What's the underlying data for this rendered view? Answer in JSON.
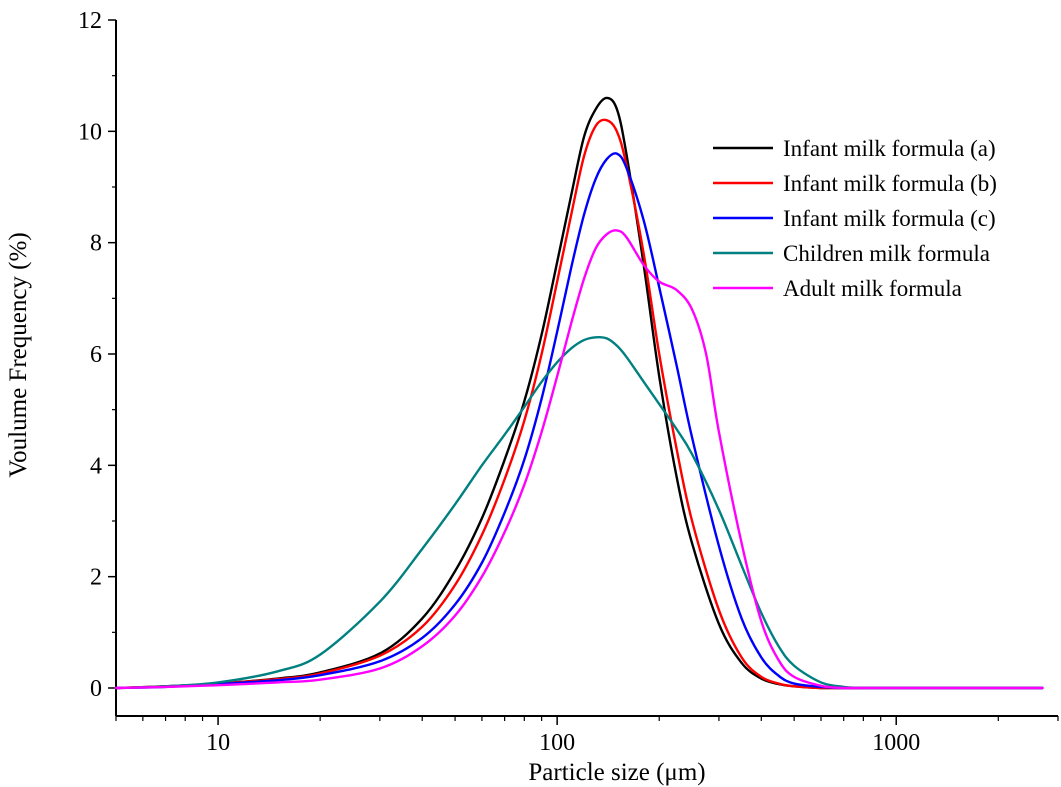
{
  "chart_data": {
    "type": "line",
    "title": "",
    "xlabel": "Particle size (μm)",
    "ylabel": "Voulume Frequency (%)",
    "x_scale": "log",
    "xlim": [
      5,
      3000
    ],
    "ylim": [
      0,
      12
    ],
    "x_ticks": [
      10,
      100,
      1000
    ],
    "x_tick_labels": [
      "10",
      "100",
      "1000"
    ],
    "y_ticks": [
      0,
      2,
      4,
      6,
      8,
      10,
      12
    ],
    "y_tick_labels": [
      "0",
      "2",
      "4",
      "6",
      "8",
      "10",
      "12"
    ],
    "grid": false,
    "legend_position": "top-right",
    "series": [
      {
        "name": "Infant milk formula (a)",
        "color": "#000000",
        "x": [
          5,
          7,
          10,
          15,
          20,
          30,
          40,
          50,
          60,
          70,
          80,
          90,
          100,
          110,
          120,
          130,
          140,
          150,
          160,
          180,
          200,
          225,
          250,
          300,
          350,
          400,
          450,
          500,
          600,
          700,
          1000,
          2700
        ],
        "y": [
          0,
          0.03,
          0.08,
          0.17,
          0.28,
          0.62,
          1.25,
          2.1,
          3.05,
          4.1,
          5.15,
          6.35,
          7.65,
          8.85,
          9.9,
          10.4,
          10.6,
          10.4,
          9.6,
          7.6,
          5.6,
          3.8,
          2.6,
          1.15,
          0.45,
          0.17,
          0.07,
          0.03,
          0,
          0,
          0,
          0
        ]
      },
      {
        "name": "Infant milk formula (b)",
        "color": "#ff0000",
        "x": [
          5,
          7,
          10,
          15,
          20,
          30,
          40,
          50,
          60,
          70,
          80,
          90,
          100,
          110,
          120,
          130,
          140,
          150,
          160,
          180,
          200,
          225,
          250,
          300,
          350,
          400,
          450,
          500,
          600,
          700,
          1000,
          2700
        ],
        "y": [
          0,
          0.03,
          0.08,
          0.16,
          0.26,
          0.58,
          1.1,
          1.85,
          2.75,
          3.75,
          4.8,
          6.0,
          7.3,
          8.5,
          9.55,
          10.1,
          10.2,
          10.0,
          9.4,
          7.8,
          6.0,
          4.3,
          3.0,
          1.4,
          0.55,
          0.2,
          0.08,
          0.03,
          0,
          0,
          0,
          0
        ]
      },
      {
        "name": "Infant milk formula (c)",
        "color": "#0000ff",
        "x": [
          5,
          7,
          10,
          15,
          20,
          30,
          40,
          50,
          60,
          70,
          80,
          90,
          100,
          110,
          120,
          130,
          140,
          150,
          160,
          180,
          200,
          225,
          250,
          300,
          350,
          400,
          450,
          500,
          600,
          700,
          1000,
          2700
        ],
        "y": [
          0,
          0.02,
          0.07,
          0.14,
          0.23,
          0.48,
          0.9,
          1.5,
          2.25,
          3.15,
          4.1,
          5.2,
          6.4,
          7.55,
          8.5,
          9.15,
          9.5,
          9.6,
          9.35,
          8.4,
          7.2,
          5.8,
          4.5,
          2.55,
          1.25,
          0.55,
          0.22,
          0.08,
          0.02,
          0,
          0,
          0
        ]
      },
      {
        "name": "Children milk formula",
        "color": "#008080",
        "x": [
          5,
          7,
          10,
          15,
          20,
          30,
          40,
          50,
          60,
          70,
          80,
          90,
          100,
          110,
          120,
          130,
          140,
          150,
          160,
          180,
          200,
          225,
          250,
          300,
          350,
          400,
          450,
          500,
          600,
          700,
          800,
          1000,
          2700
        ],
        "y": [
          0,
          0.03,
          0.1,
          0.3,
          0.6,
          1.55,
          2.5,
          3.3,
          4.0,
          4.55,
          5.05,
          5.5,
          5.85,
          6.1,
          6.25,
          6.3,
          6.28,
          6.15,
          5.95,
          5.5,
          5.1,
          4.65,
          4.2,
          3.2,
          2.2,
          1.35,
          0.75,
          0.4,
          0.1,
          0.02,
          0,
          0,
          0
        ]
      },
      {
        "name": "Adult milk formula",
        "color": "#ff00ff",
        "x": [
          5,
          7,
          10,
          15,
          20,
          30,
          40,
          50,
          60,
          70,
          80,
          90,
          100,
          110,
          120,
          130,
          140,
          150,
          160,
          180,
          200,
          225,
          250,
          275,
          300,
          350,
          400,
          450,
          500,
          600,
          700,
          800,
          1000,
          2700
        ],
        "y": [
          0,
          0.02,
          0.05,
          0.1,
          0.15,
          0.35,
          0.75,
          1.3,
          2.0,
          2.8,
          3.65,
          4.6,
          5.6,
          6.55,
          7.35,
          7.9,
          8.15,
          8.22,
          8.1,
          7.6,
          7.3,
          7.15,
          6.8,
          6.0,
          4.6,
          2.6,
          1.2,
          0.5,
          0.2,
          0.04,
          0,
          0,
          0,
          0
        ]
      }
    ]
  }
}
